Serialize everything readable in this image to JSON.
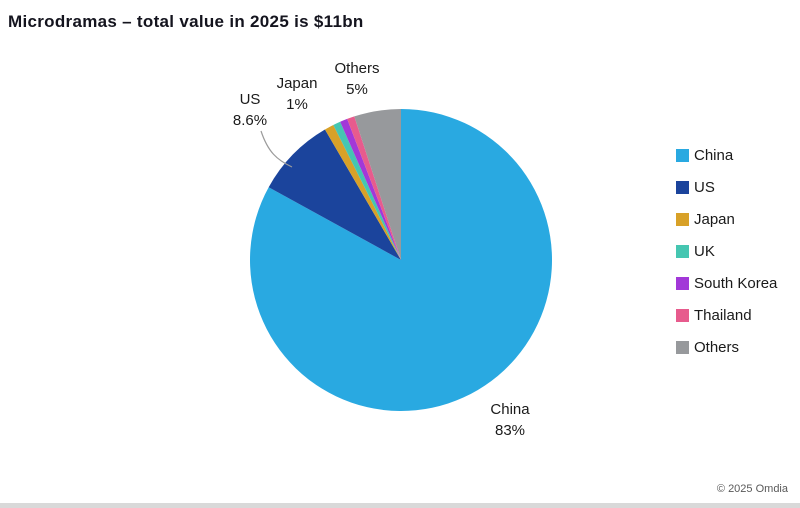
{
  "title": "Microdramas – total value in 2025 is $11bn",
  "copyright": "© 2025 Omdia",
  "chart_data": {
    "type": "pie",
    "title": "Microdramas – total value in 2025 is $11bn",
    "total_value": "$11bn",
    "year": "2025",
    "categories": [
      "China",
      "US",
      "Japan",
      "UK",
      "South Korea",
      "Thailand",
      "Others"
    ],
    "values": [
      83,
      8.6,
      1,
      0.8,
      0.8,
      0.8,
      5
    ],
    "values_unit": "%",
    "colors": [
      "#29A9E1",
      "#1B449C",
      "#D8A128",
      "#45C6B1",
      "#A238D8",
      "#E75B8D",
      "#97999C"
    ],
    "legend_position": "right",
    "start_angle_deg": 0,
    "direction": "clockwise",
    "shown_data_labels": [
      "China 83%",
      "US 8.6%",
      "Japan 1%",
      "Others 5%"
    ]
  },
  "point_labels": {
    "others": {
      "name": "Others",
      "pct": "5%"
    },
    "japan": {
      "name": "Japan",
      "pct": "1%"
    },
    "us": {
      "name": "US",
      "pct": "8.6%"
    },
    "china": {
      "name": "China",
      "pct": "83%"
    }
  }
}
